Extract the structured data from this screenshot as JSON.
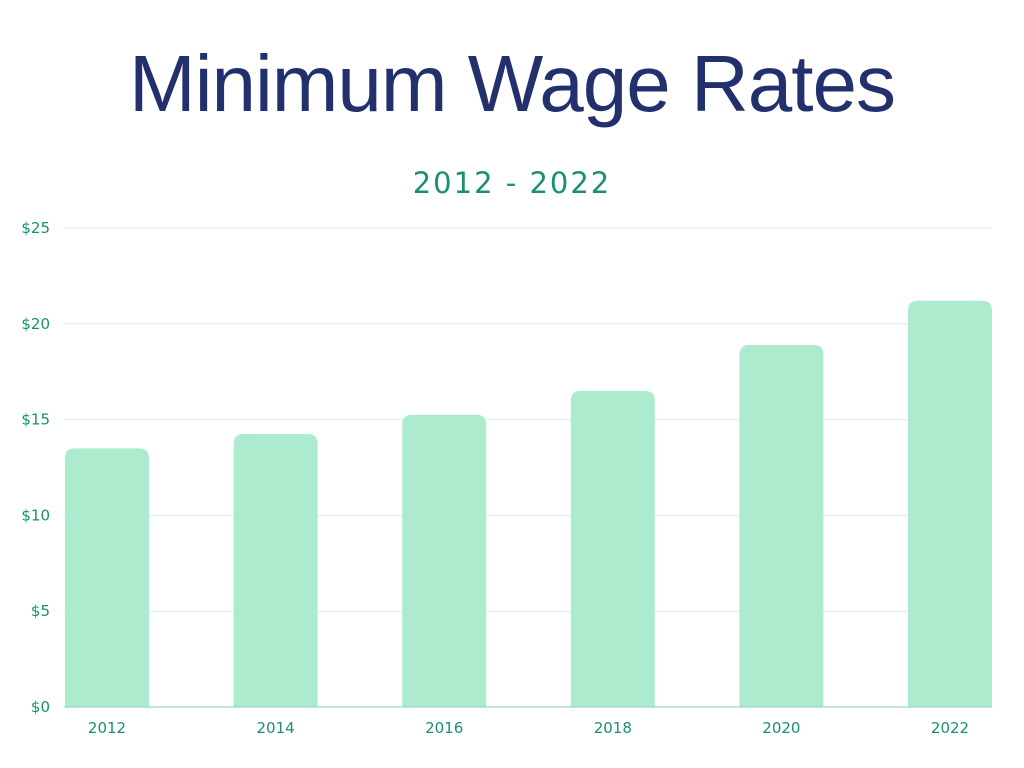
{
  "chart_data": {
    "type": "bar",
    "title": "Minimum Wage Rates",
    "subtitle": "2012 - 2022",
    "xlabel": "",
    "ylabel": "",
    "categories": [
      "2012",
      "2014",
      "2016",
      "2018",
      "2020",
      "2022"
    ],
    "values": [
      13.5,
      14.25,
      15.25,
      16.5,
      18.9,
      21.2
    ],
    "ylim": [
      0,
      25
    ],
    "yticks": [
      0,
      5,
      10,
      15,
      20,
      25
    ],
    "ytick_labels": [
      "$0",
      "$5",
      "$10",
      "$15",
      "$20",
      "$25"
    ],
    "grid": true,
    "legend": "none",
    "colors": {
      "bar": "#adebcf",
      "title": "#23306e",
      "accent_text": "#1a8f72",
      "gridline": "#d9efe7",
      "axis": "#86cfb2"
    }
  }
}
